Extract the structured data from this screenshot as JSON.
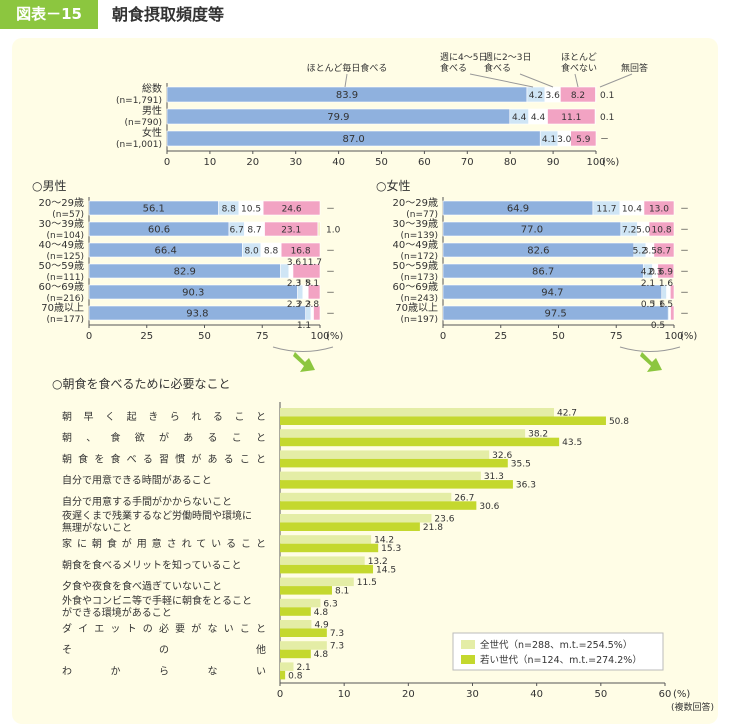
{
  "header": {
    "figure_label": "図表－15",
    "title": "朝食摂取頻度等"
  },
  "colors": {
    "daily": "#8fb1de",
    "w45": "#cfe5f5",
    "w23": "#ffffff",
    "rarely": "#f2a3c3",
    "noans": "#f5eec8",
    "all_gen": "#e4eda6",
    "young": "#c4d82e",
    "arrow": "#8cc63f",
    "panel": "#fffde6",
    "header": "#8cc63f"
  },
  "chart_data": [
    {
      "id": "overall",
      "type": "bar",
      "orientation": "horizontal",
      "stacked": true,
      "categories": [
        "総数",
        "男性",
        "女性"
      ],
      "category_sublabels": [
        "(n=1,791)",
        "(n=790)",
        "(n=1,001)"
      ],
      "series": [
        {
          "name": "ほとんど毎日食べる",
          "values": [
            83.9,
            79.9,
            87.0
          ]
        },
        {
          "name": "週に4～5日食べる",
          "values": [
            4.2,
            4.4,
            4.1
          ]
        },
        {
          "name": "週に2～3日食べる",
          "values": [
            3.6,
            4.4,
            3.0
          ]
        },
        {
          "name": "ほとんど食べない",
          "values": [
            8.2,
            11.1,
            5.9
          ]
        },
        {
          "name": "無回答",
          "values": [
            0.1,
            0.1,
            0
          ]
        }
      ],
      "value_labels": {
        "daily": [
          "83.9",
          "79.9",
          "87.0"
        ],
        "w45": [
          "4.2",
          "4.4",
          "4.1"
        ],
        "w23": [
          "3.6",
          "4.4",
          "3.0"
        ],
        "rarely": [
          "8.2",
          "11.1",
          "5.9"
        ],
        "noans": [
          "0.1",
          "0.1",
          "－"
        ]
      },
      "xlim": [
        0,
        100
      ],
      "xticks": [
        "0",
        "10",
        "20",
        "30",
        "40",
        "50",
        "60",
        "70",
        "80",
        "90",
        "100"
      ],
      "xunit": "(%)"
    },
    {
      "id": "male",
      "type": "bar",
      "orientation": "horizontal",
      "stacked": true,
      "title": "○男性",
      "categories": [
        "20～29歳",
        "30～39歳",
        "40～49歳",
        "50～59歳",
        "60～69歳",
        "70歳以上"
      ],
      "category_sublabels": [
        "(n=57)",
        "(n=104)",
        "(n=125)",
        "(n=111)",
        "(n=216)",
        "(n=177)"
      ],
      "series": [
        {
          "name": "ほとんど毎日食べる",
          "values": [
            56.1,
            60.6,
            66.4,
            82.9,
            90.3,
            93.8
          ]
        },
        {
          "name": "週に4～5日食べる",
          "values": [
            8.8,
            6.7,
            8.0,
            3.6,
            2.3,
            2.3
          ]
        },
        {
          "name": "週に2～3日食べる",
          "values": [
            10.5,
            8.7,
            8.8,
            1.8,
            2.3,
            1.1
          ]
        },
        {
          "name": "ほとんど食べない",
          "values": [
            24.6,
            23.1,
            16.8,
            11.7,
            5.1,
            2.8
          ]
        },
        {
          "name": "無回答",
          "values": [
            0,
            1.0,
            0,
            0,
            0,
            0
          ]
        }
      ],
      "value_labels": {
        "daily": [
          "56.1",
          "60.6",
          "66.4",
          "82.9",
          "90.3",
          "93.8"
        ],
        "w45": [
          "8.8",
          "6.7",
          "8.0",
          "3.6",
          "2.3",
          "2.3"
        ],
        "w23": [
          "10.5",
          "8.7",
          "8.8",
          "1.8",
          "2.3",
          "1.1"
        ],
        "rarely": [
          "24.6",
          "23.1",
          "16.8",
          "11.7",
          "5.1",
          "2.8"
        ],
        "noans": [
          "－",
          "1.0",
          "－",
          "－",
          "－",
          "－"
        ]
      },
      "xlim": [
        0,
        100
      ],
      "xticks": [
        "0",
        "25",
        "50",
        "75",
        "100"
      ],
      "xunit": "(%)"
    },
    {
      "id": "female",
      "type": "bar",
      "orientation": "horizontal",
      "stacked": true,
      "title": "○女性",
      "categories": [
        "20～29歳",
        "30～39歳",
        "40～49歳",
        "50～59歳",
        "60～69歳",
        "70歳以上"
      ],
      "category_sublabels": [
        "(n=77)",
        "(n=139)",
        "(n=172)",
        "(n=173)",
        "(n=243)",
        "(n=197)"
      ],
      "series": [
        {
          "name": "ほとんど毎日食べる",
          "values": [
            64.9,
            77.0,
            82.6,
            86.7,
            94.7,
            97.5
          ]
        },
        {
          "name": "週に4～5日食べる",
          "values": [
            11.7,
            7.2,
            5.2,
            4.0,
            2.1,
            0.5
          ]
        },
        {
          "name": "週に2～3日食べる",
          "values": [
            10.4,
            5.0,
            3.5,
            2.3,
            1.6,
            0.5
          ]
        },
        {
          "name": "ほとんど食べない",
          "values": [
            13.0,
            10.8,
            8.7,
            6.9,
            1.6,
            1.5
          ]
        },
        {
          "name": "無回答",
          "values": [
            0,
            0,
            0,
            0,
            0,
            0
          ]
        }
      ],
      "value_labels": {
        "daily": [
          "64.9",
          "77.0",
          "82.6",
          "86.7",
          "94.7",
          "97.5"
        ],
        "w45": [
          "11.7",
          "7.2",
          "5.2",
          "4.0",
          "2.1",
          "0.5"
        ],
        "w23": [
          "10.4",
          "5.0",
          "3.5",
          "2.3",
          "1.6",
          "0.5"
        ],
        "rarely": [
          "13.0",
          "10.8",
          "8.7",
          "6.9",
          "1.6",
          "1.5"
        ],
        "noans": [
          "－",
          "－",
          "－",
          "－",
          "－",
          "－"
        ]
      },
      "xlim": [
        0,
        100
      ],
      "xticks": [
        "0",
        "25",
        "50",
        "75",
        "100"
      ],
      "xunit": "(%)"
    },
    {
      "id": "needs",
      "type": "bar",
      "orientation": "horizontal",
      "title": "○朝食を食べるために必要なこと",
      "categories": [
        "朝早く起きられること",
        "朝、食欲があること",
        "朝食を食べる習慣があること",
        "自分で用意できる時間があること",
        "自分で用意する手間がかからないこと",
        "夜遅くまで残業するなど労働時間や環境に無理がないこと",
        "家に朝食が用意されていること",
        "朝食を食べるメリットを知っていること",
        "夕食や夜食を食べ過ぎていないこと",
        "外食やコンビニ等で手軽に朝食をとることができる環境があること",
        "ダイエットの必要がないこと",
        "その他",
        "わからない"
      ],
      "category_display_lines": [
        [
          "朝早く起きられること"
        ],
        [
          "朝、食欲があること"
        ],
        [
          "朝食を食べる習慣があること"
        ],
        [
          "自分で用意できる時間があること"
        ],
        [
          "自分で用意する手間がかからないこと"
        ],
        [
          "夜遅くまで残業するなど労働時間や環境に",
          "無理がないこと"
        ],
        [
          "家に朝食が用意されていること"
        ],
        [
          "朝食を食べるメリットを知っていること"
        ],
        [
          "夕食や夜食を食べ過ぎていないこと"
        ],
        [
          "外食やコンビニ等で手軽に朝食をとること",
          "ができる環境があること"
        ],
        [
          "ダイエットの必要がないこと"
        ],
        [
          "その他"
        ],
        [
          "わからない"
        ]
      ],
      "series": [
        {
          "name": "全世代",
          "legend_label": "全世代（n=288、m.t.=254.5%）",
          "values": [
            42.7,
            38.2,
            32.6,
            31.3,
            26.7,
            23.6,
            14.2,
            13.2,
            11.5,
            6.3,
            4.9,
            7.3,
            2.1
          ]
        },
        {
          "name": "若い世代",
          "legend_label": "若い世代（n=124、m.t.=274.2%）",
          "values": [
            50.8,
            43.5,
            35.5,
            36.3,
            30.6,
            21.8,
            15.3,
            14.5,
            8.1,
            4.8,
            7.3,
            4.8,
            0.8
          ]
        }
      ],
      "xlim": [
        0,
        60
      ],
      "xticks": [
        "0",
        "10",
        "20",
        "30",
        "40",
        "50",
        "60"
      ],
      "xunit": "(%)",
      "note": "(複数回答)"
    }
  ]
}
